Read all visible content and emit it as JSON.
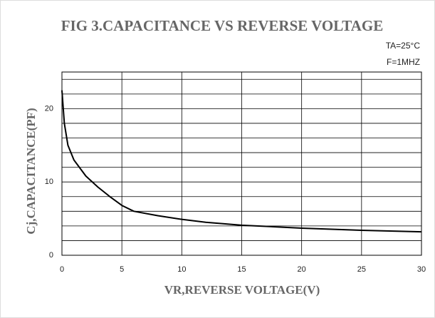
{
  "chart_data": {
    "type": "line",
    "title": "FIG 3.CAPACITANCE VS REVERSE VOLTAGE",
    "annotations": [
      "TA=25°C",
      "F=1MHZ"
    ],
    "x_label": "VR,REVERSE  VOLTAGE(V)",
    "y_label": "Cj,CAPACITANCE(PF)",
    "x": [
      0,
      0.2,
      0.5,
      1,
      2,
      3,
      4,
      5,
      6,
      8,
      10,
      12,
      15,
      20,
      25,
      30
    ],
    "series": [
      {
        "name": "Cj",
        "color": "#000000",
        "values": [
          22.5,
          18,
          15,
          13,
          10.8,
          9.3,
          8,
          6.8,
          6,
          5.4,
          4.9,
          4.5,
          4.1,
          3.7,
          3.4,
          3.2
        ]
      }
    ],
    "xlim": [
      0,
      30
    ],
    "xticks": [
      0,
      5,
      10,
      15,
      20,
      25,
      30
    ],
    "ylim": [
      0,
      25
    ],
    "yticks": [
      0,
      10,
      20
    ],
    "y_minor_ticks": [
      2,
      4,
      6,
      8,
      12,
      14,
      16,
      18,
      22,
      24
    ],
    "grid": true
  }
}
